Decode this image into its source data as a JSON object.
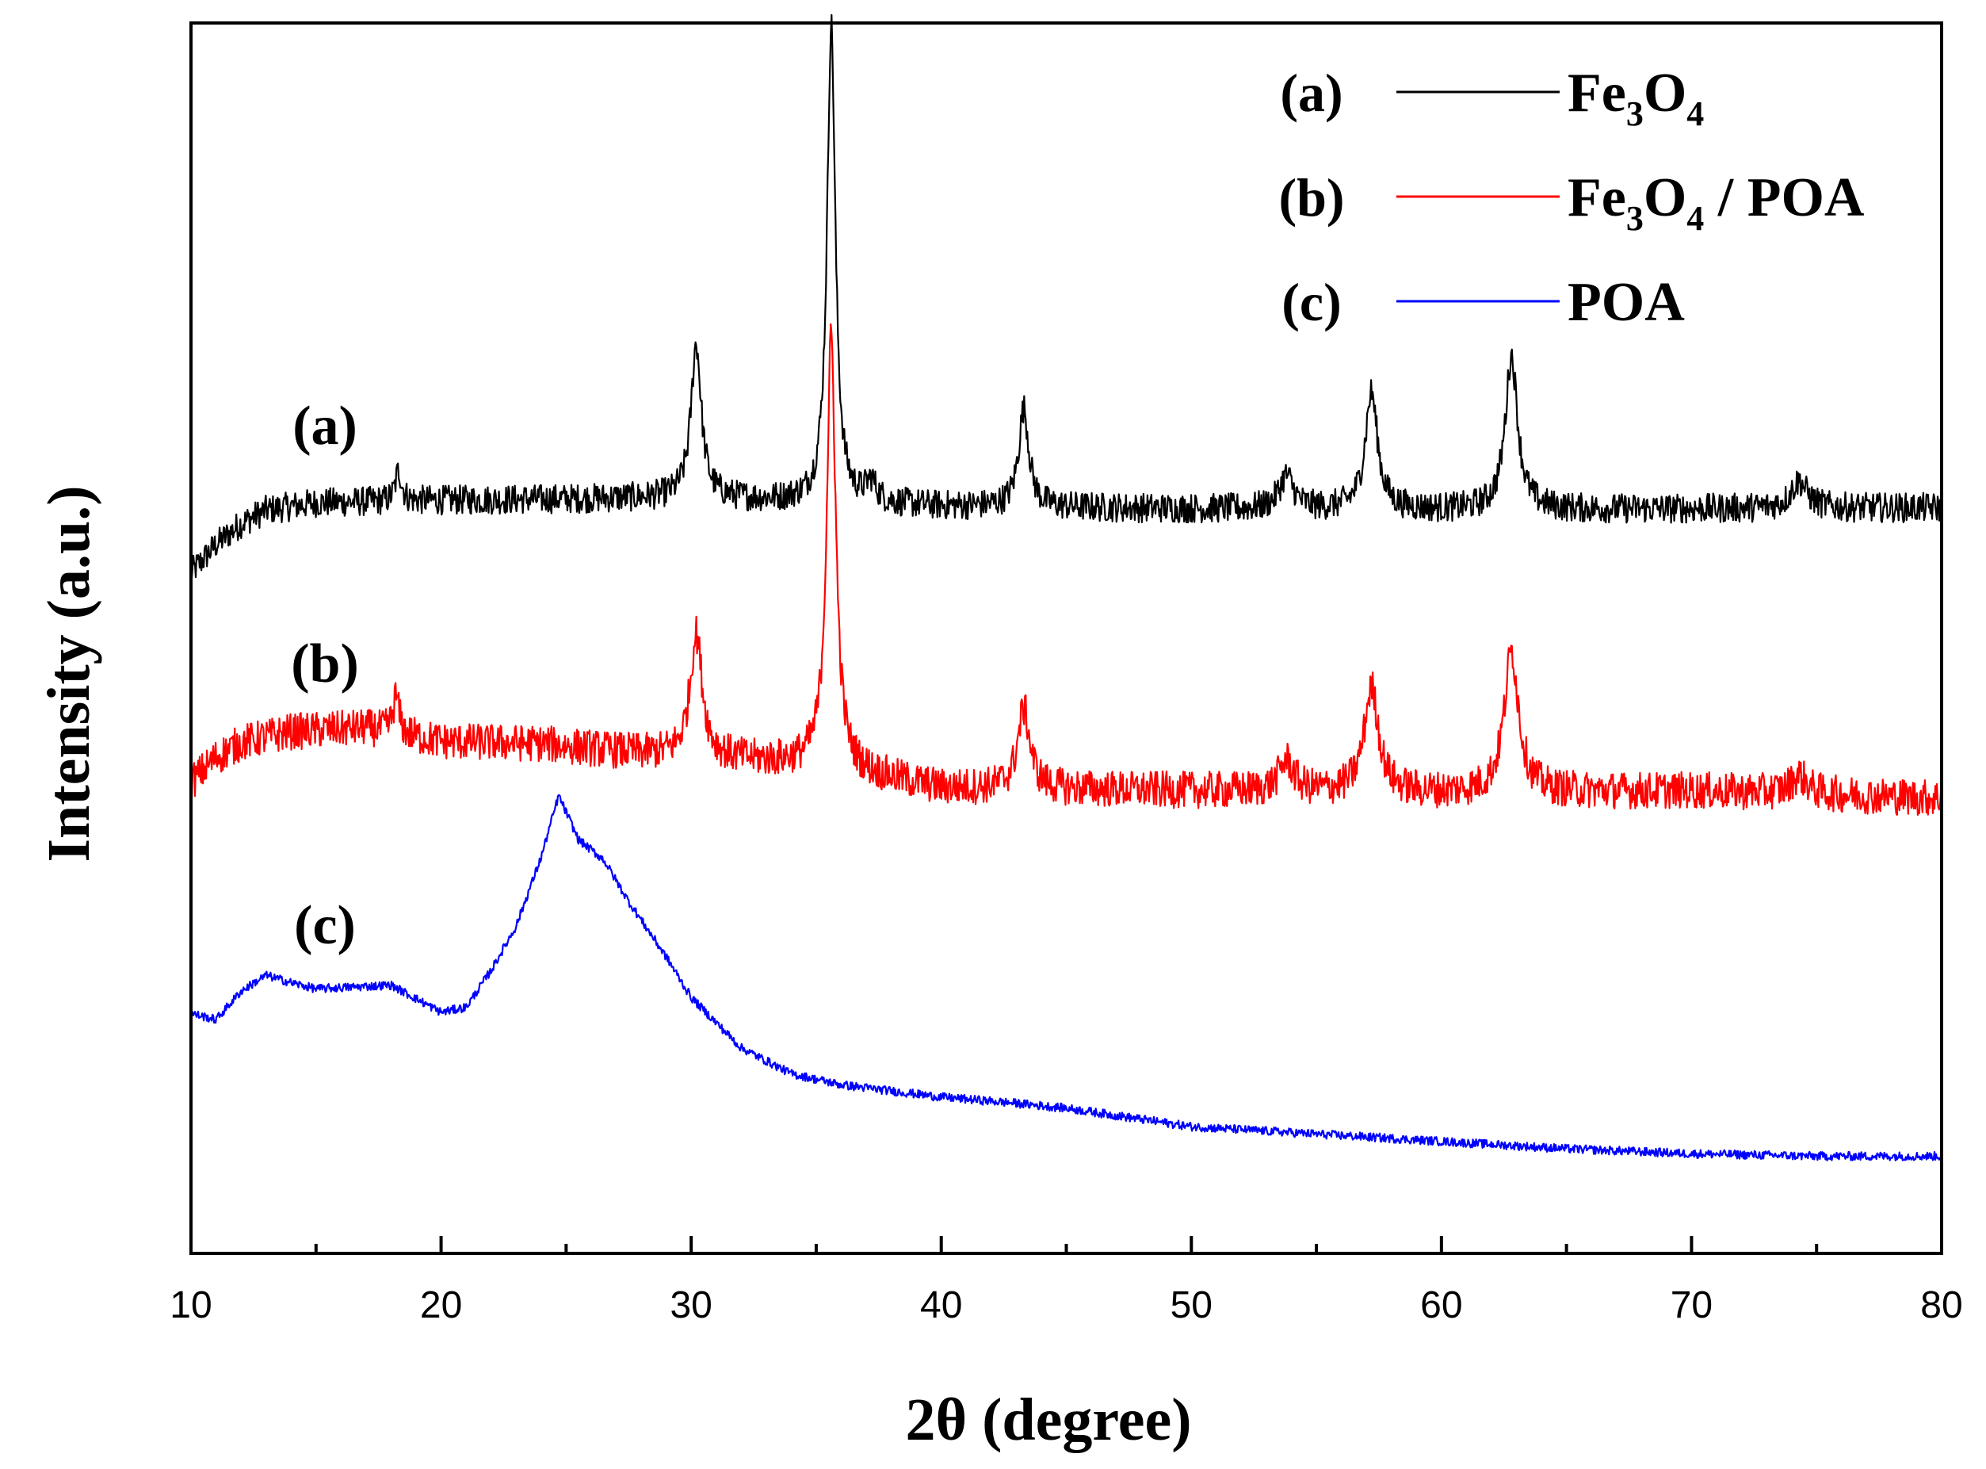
{
  "chart_data": {
    "type": "line",
    "title": "",
    "xlabel": "2θ (degree)",
    "ylabel": "Intensity (a.u.)",
    "xlim": [
      10,
      80
    ],
    "ylim": [
      0,
      100
    ],
    "x_ticks": [
      10,
      20,
      30,
      40,
      50,
      60,
      70,
      80
    ],
    "y_ticks_shown": false,
    "grid": false,
    "legend_position": "top-right",
    "legend": [
      {
        "tag": "(a)",
        "base": "Fe",
        "sub1": "3",
        "mid": "O",
        "sub2": "4",
        "suffix": "",
        "color": "#000000"
      },
      {
        "tag": "(b)",
        "base": "Fe",
        "sub1": "3",
        "mid": "O",
        "sub2": "4",
        "suffix": " / POA",
        "color": "#ff0000"
      },
      {
        "tag": "(c)",
        "base": "POA",
        "sub1": "",
        "mid": "",
        "sub2": "",
        "suffix": "",
        "color": "#0000ff"
      }
    ],
    "curve_labels": [
      "(a)",
      "(b)",
      "(c)"
    ],
    "series": [
      {
        "name": "Fe3O4",
        "label": "(a)",
        "color": "#000000",
        "noise": 1.2,
        "baseline": [
          [
            10,
            55.3
          ],
          [
            11,
            57.6
          ],
          [
            12,
            59.3
          ],
          [
            13,
            60.4
          ],
          [
            15,
            61.0
          ],
          [
            20,
            61.2
          ],
          [
            30,
            61.4
          ],
          [
            40,
            60.7
          ],
          [
            50,
            60.5
          ],
          [
            60,
            60.4
          ],
          [
            70,
            60.5
          ],
          [
            80,
            60.6
          ]
        ],
        "peaks": [
          {
            "x": 18.3,
            "h": 2.5,
            "w": 0.15
          },
          {
            "x": 30.2,
            "h": 12.5,
            "w": 0.25
          },
          {
            "x": 35.6,
            "h": 38.8,
            "w": 0.2
          },
          {
            "x": 37.2,
            "h": 1.6,
            "w": 0.25
          },
          {
            "x": 43.3,
            "h": 8.0,
            "w": 0.25
          },
          {
            "x": 53.8,
            "h": 2.7,
            "w": 0.35
          },
          {
            "x": 57.2,
            "h": 9.5,
            "w": 0.3
          },
          {
            "x": 62.8,
            "h": 12.5,
            "w": 0.3
          },
          {
            "x": 74.3,
            "h": 2.2,
            "w": 0.4
          }
        ]
      },
      {
        "name": "Fe3O4 / POA",
        "label": "(b)",
        "color": "#ff0000",
        "noise": 1.5,
        "baseline": [
          [
            10,
            38.3
          ],
          [
            11,
            40.3
          ],
          [
            12,
            41.5
          ],
          [
            14,
            42.4
          ],
          [
            17,
            42.7
          ],
          [
            20,
            41.6
          ],
          [
            24,
            41.4
          ],
          [
            28,
            40.6
          ],
          [
            35,
            39.7
          ],
          [
            40,
            37.8
          ],
          [
            50,
            37.6
          ],
          [
            60,
            37.4
          ],
          [
            70,
            37.6
          ],
          [
            80,
            37.0
          ]
        ],
        "peaks": [
          {
            "x": 18.2,
            "h": 3.0,
            "w": 0.15
          },
          {
            "x": 30.2,
            "h": 10.0,
            "w": 0.3
          },
          {
            "x": 35.6,
            "h": 35.0,
            "w": 0.22
          },
          {
            "x": 43.3,
            "h": 6.5,
            "w": 0.3
          },
          {
            "x": 53.8,
            "h": 2.5,
            "w": 0.35
          },
          {
            "x": 57.2,
            "h": 8.5,
            "w": 0.35
          },
          {
            "x": 62.8,
            "h": 11.5,
            "w": 0.35
          },
          {
            "x": 74.3,
            "h": 1.5,
            "w": 0.4
          }
        ]
      },
      {
        "name": "POA",
        "label": "(c)",
        "color": "#0000ff",
        "noise": 0.35,
        "baseline": [
          [
            10,
            19.5
          ],
          [
            11,
            19.0
          ],
          [
            12,
            21.3
          ],
          [
            13,
            22.6
          ],
          [
            14,
            22.0
          ],
          [
            15,
            21.5
          ],
          [
            17,
            21.7
          ],
          [
            18,
            21.8
          ],
          [
            20,
            19.6
          ],
          [
            21,
            20.0
          ],
          [
            22,
            23.0
          ],
          [
            23,
            26.6
          ],
          [
            24,
            32.2
          ],
          [
            24.7,
            37.2
          ],
          [
            25.5,
            33.6
          ],
          [
            26.5,
            32.0
          ],
          [
            27.5,
            28.6
          ],
          [
            29,
            24.1
          ],
          [
            30,
            20.8
          ],
          [
            32,
            16.7
          ],
          [
            34,
            14.6
          ],
          [
            36,
            13.7
          ],
          [
            40,
            12.7
          ],
          [
            43,
            12.2
          ],
          [
            45,
            11.8
          ],
          [
            50,
            10.3
          ],
          [
            55,
            9.7
          ],
          [
            60,
            9.1
          ],
          [
            65,
            8.5
          ],
          [
            70,
            8.1
          ],
          [
            75,
            7.9
          ],
          [
            80,
            7.9
          ]
        ],
        "peaks": []
      }
    ]
  }
}
